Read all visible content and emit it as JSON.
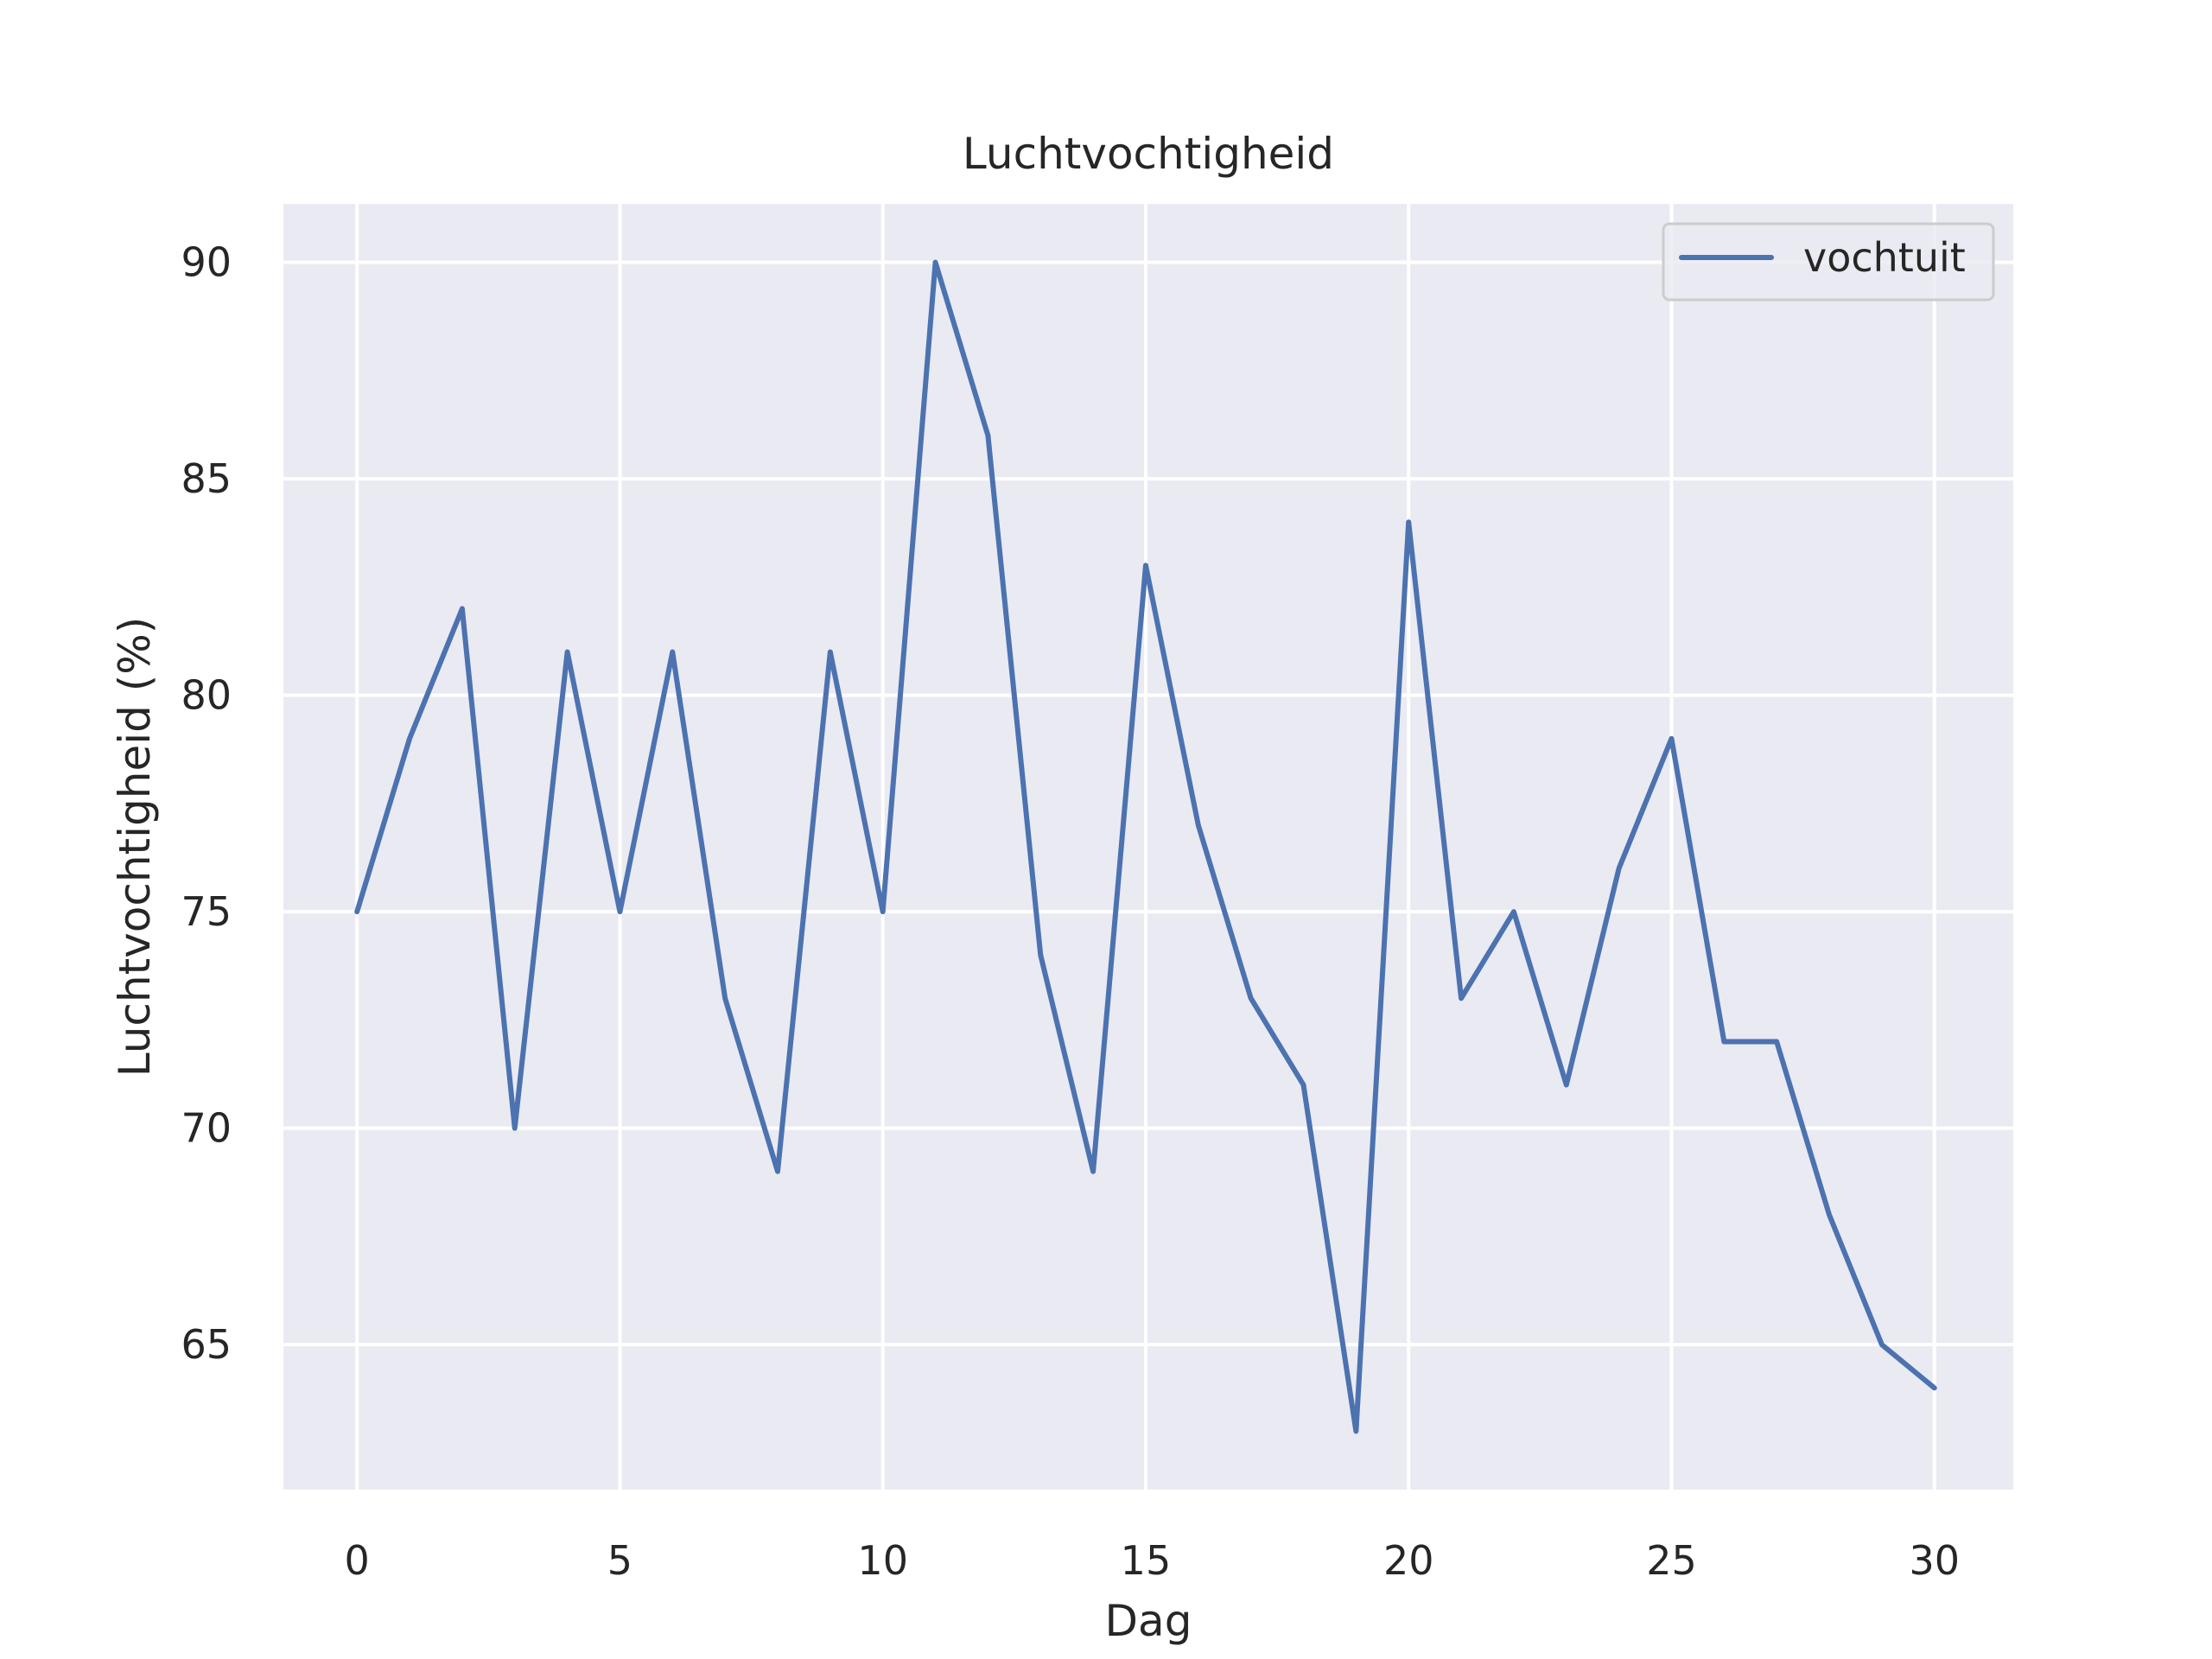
{
  "chart_data": {
    "type": "line",
    "title": "Luchtvochtigheid",
    "xlabel": "Dag",
    "ylabel": "Luchtvochtigheid (%)",
    "x": [
      0,
      1,
      2,
      3,
      4,
      5,
      6,
      7,
      8,
      9,
      10,
      11,
      12,
      13,
      14,
      15,
      16,
      17,
      18,
      19,
      20,
      21,
      22,
      23,
      24,
      25,
      26,
      27,
      28,
      29,
      30
    ],
    "series": [
      {
        "name": "vochtuit",
        "color": "#4c72b0",
        "values": [
          75,
          79,
          82,
          70,
          81,
          75,
          81,
          73,
          69,
          81,
          75,
          90,
          86,
          74,
          69,
          83,
          77,
          73,
          71,
          63,
          84,
          73,
          75,
          71,
          76,
          79,
          72,
          72,
          68,
          65,
          64
        ]
      }
    ],
    "xlim": [
      -1.4,
      31.5
    ],
    "ylim": [
      61.65,
      91.35
    ],
    "xticks": [
      0,
      5,
      10,
      15,
      20,
      25,
      30
    ],
    "yticks": [
      65,
      70,
      75,
      80,
      85,
      90
    ],
    "grid": true,
    "legend_position": "top-right",
    "background_color": "#eaeaf2",
    "grid_color": "#ffffff"
  }
}
